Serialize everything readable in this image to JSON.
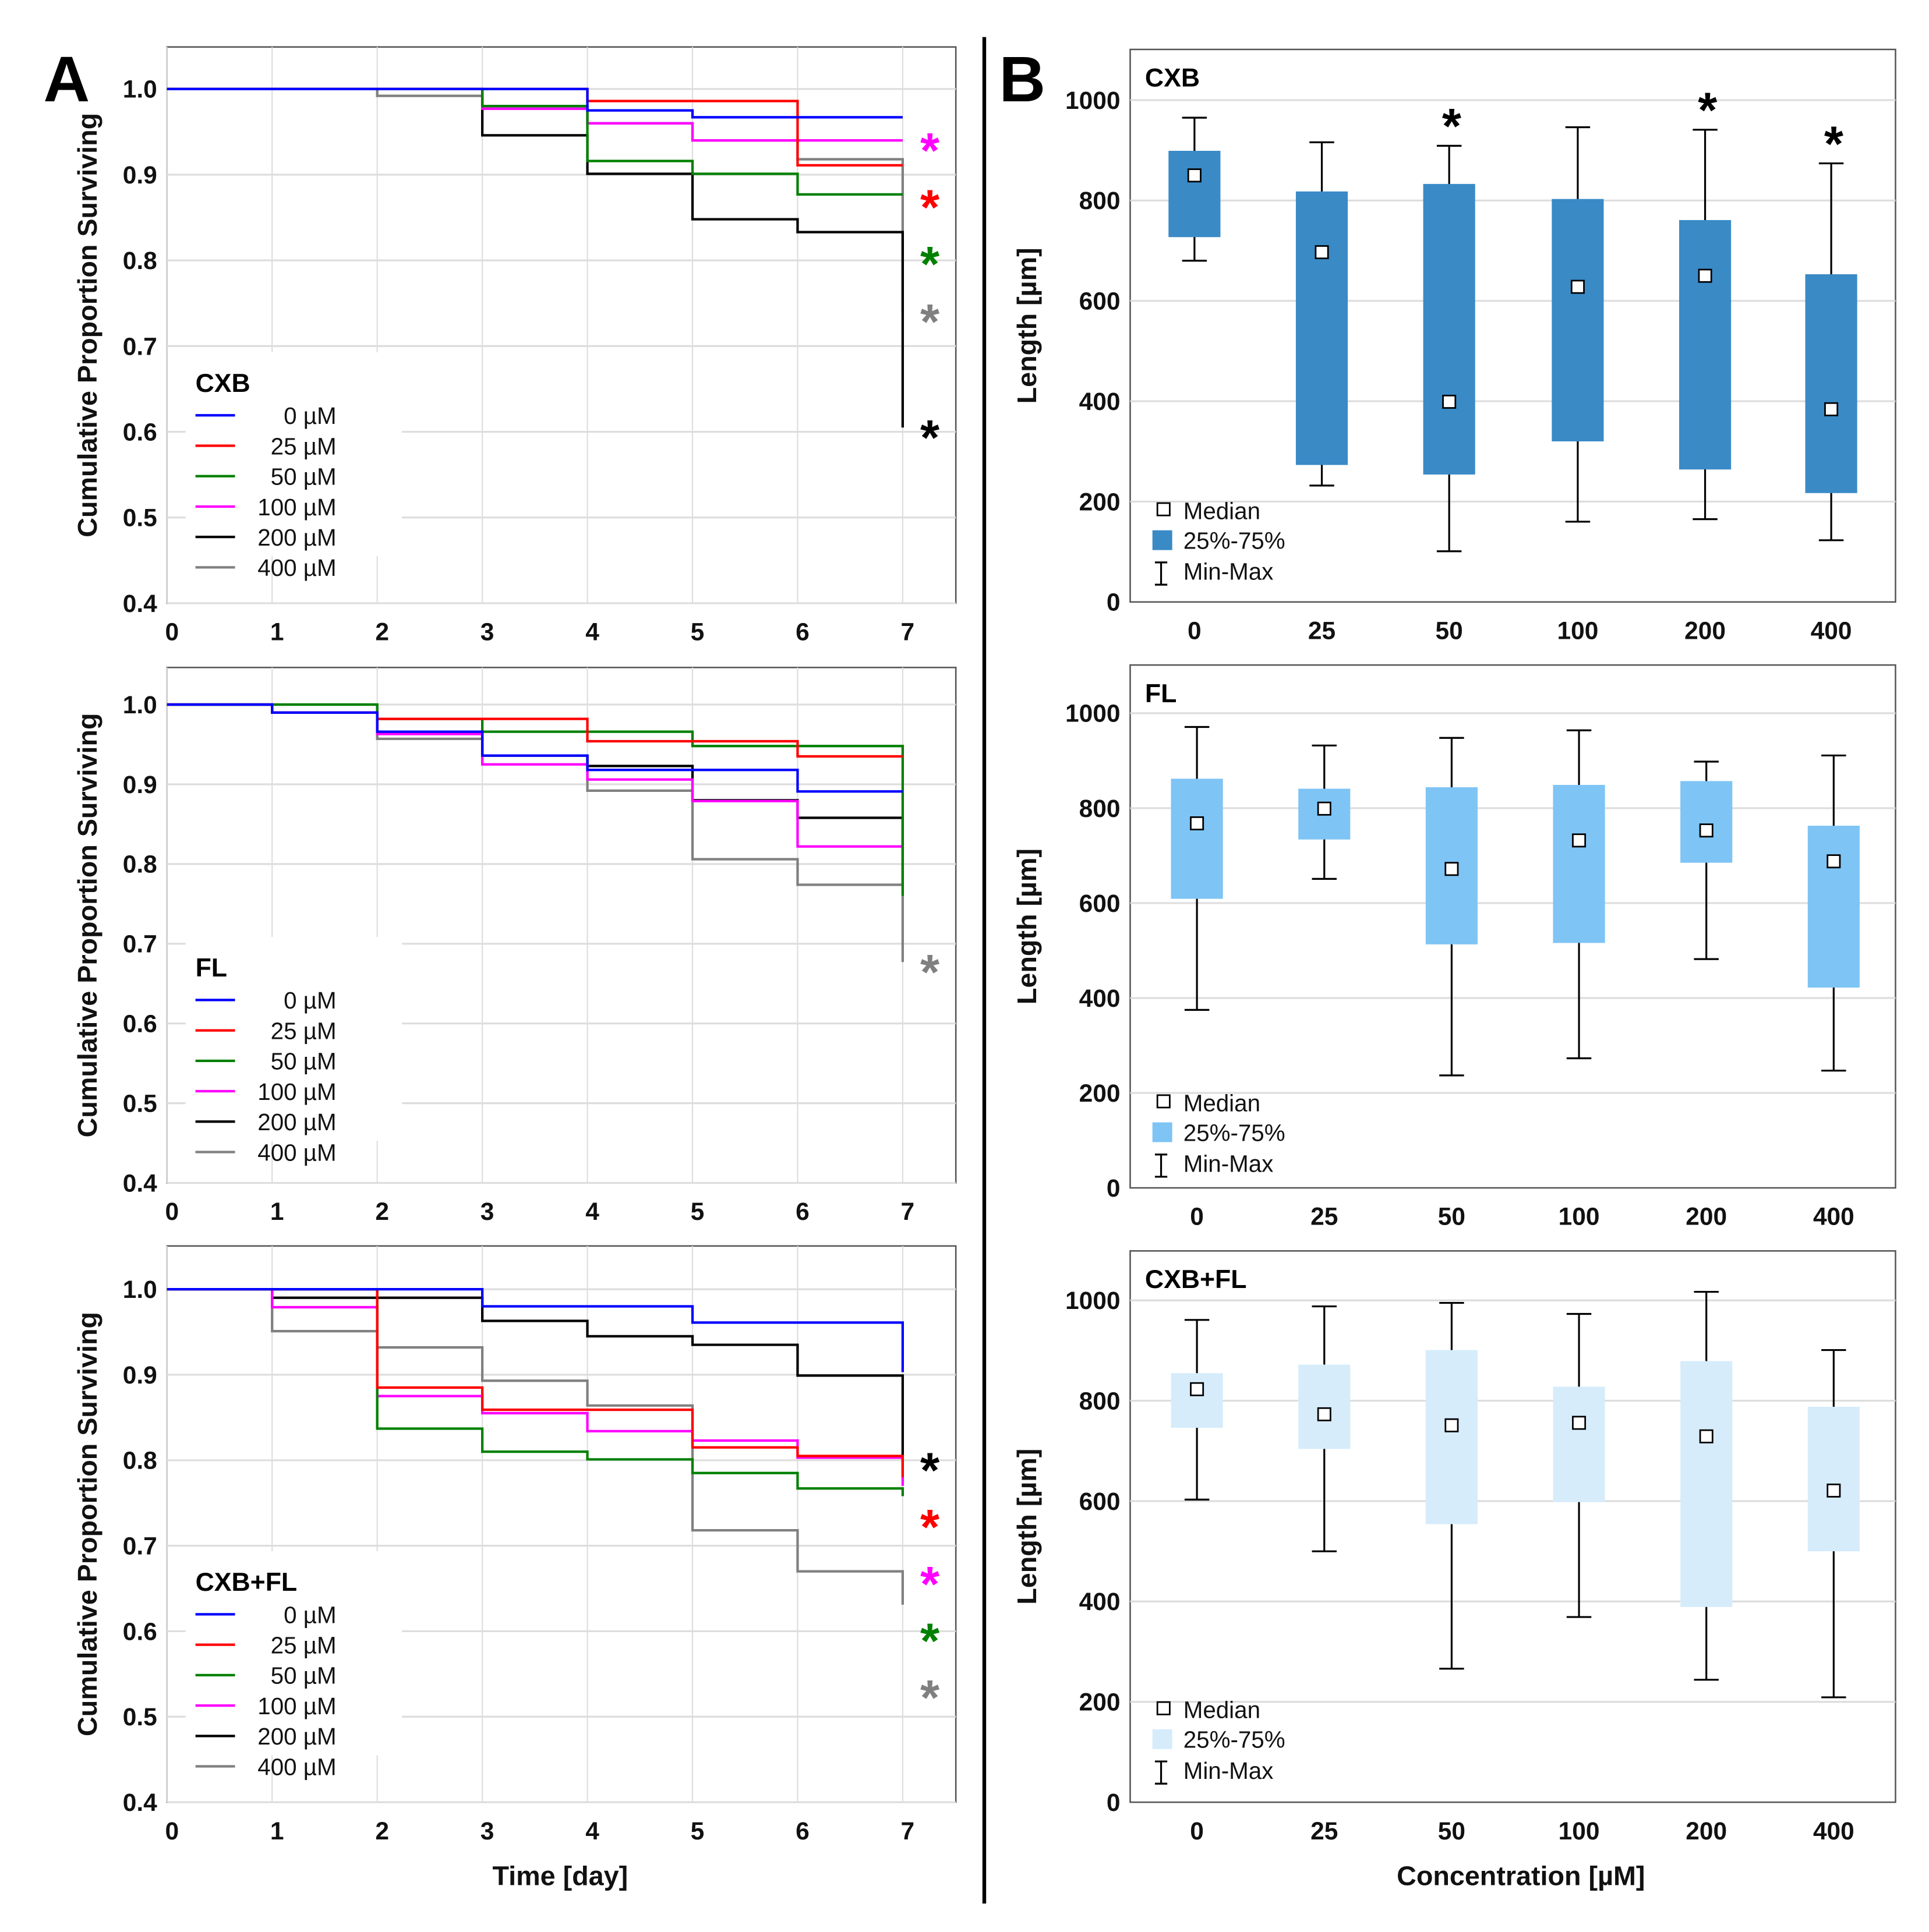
{
  "panel_labels": {
    "a": "A",
    "b": "B"
  },
  "chart_data": [
    {
      "type": "line",
      "subtype": "step-survival",
      "panel": "A",
      "title": "CXB",
      "xlabel": "",
      "ylabel": "Cumulative Proportion Surviving",
      "xlim": [
        0,
        7
      ],
      "ylim": [
        0.4,
        1.0
      ],
      "x_ticks": [
        "0",
        "1",
        "2",
        "3",
        "4",
        "5",
        "6",
        "7"
      ],
      "y_ticks": [
        "0.4",
        "0.5",
        "0.6",
        "0.7",
        "0.8",
        "0.9",
        "1.0"
      ],
      "grid": true,
      "legend_position": "bottom-left",
      "note": "steps = survival on intervals day0-1..day6-7; end = value after final drop at day 7",
      "series": [
        {
          "name": "0 µM",
          "color": "#0000ff",
          "steps": [
            1,
            1,
            1,
            1,
            0.975,
            0.967,
            0.967
          ],
          "end": 0.967,
          "significant": false
        },
        {
          "name": "25 µM",
          "color": "#ff0000",
          "steps": [
            1,
            1,
            1,
            1,
            0.986,
            0.986,
            0.911
          ],
          "end": 0.911,
          "significant": true
        },
        {
          "name": "50 µM",
          "color": "#008000",
          "steps": [
            1,
            1,
            1,
            0.98,
            0.916,
            0.901,
            0.877
          ],
          "end": 0.877,
          "significant": true
        },
        {
          "name": "100 µM",
          "color": "#ff00ff",
          "steps": [
            1,
            1,
            1,
            0.977,
            0.96,
            0.94,
            0.94
          ],
          "end": 0.94,
          "significant": true
        },
        {
          "name": "200 µM",
          "color": "#000000",
          "steps": [
            1,
            1,
            1,
            0.946,
            0.901,
            0.848,
            0.833
          ],
          "end": 0.605,
          "significant": true
        },
        {
          "name": "400 µM",
          "color": "#808080",
          "steps": [
            1,
            1,
            0.992,
            0.98,
            0.96,
            0.94,
            0.918
          ],
          "end": 0.74,
          "significant": true
        }
      ],
      "asterisk": "*"
    },
    {
      "type": "line",
      "subtype": "step-survival",
      "panel": "A",
      "title": "FL",
      "xlabel": "",
      "ylabel": "Cumulative Proportion Surviving",
      "xlim": [
        0,
        7
      ],
      "ylim": [
        0.4,
        1.0
      ],
      "x_ticks": [
        "0",
        "1",
        "2",
        "3",
        "4",
        "5",
        "6",
        "7"
      ],
      "y_ticks": [
        "0.4",
        "0.5",
        "0.6",
        "0.7",
        "0.8",
        "0.9",
        "1.0"
      ],
      "grid": true,
      "legend_position": "bottom-left",
      "series": [
        {
          "name": "0 µM",
          "color": "#0000ff",
          "steps": [
            1,
            0.99,
            0.966,
            0.936,
            0.918,
            0.918,
            0.891
          ],
          "end": 0.891,
          "significant": false
        },
        {
          "name": "25 µM",
          "color": "#ff0000",
          "steps": [
            1,
            0.99,
            0.982,
            0.982,
            0.954,
            0.954,
            0.935
          ],
          "end": 0.935,
          "significant": false
        },
        {
          "name": "50 µM",
          "color": "#008000",
          "steps": [
            1,
            1,
            0.982,
            0.966,
            0.966,
            0.948,
            0.948
          ],
          "end": 0.76,
          "significant": false
        },
        {
          "name": "100 µM",
          "color": "#ff00ff",
          "steps": [
            1,
            0.99,
            0.963,
            0.925,
            0.906,
            0.879,
            0.822
          ],
          "end": 0.822,
          "significant": false
        },
        {
          "name": "200 µM",
          "color": "#000000",
          "steps": [
            1,
            0.99,
            0.966,
            0.936,
            0.923,
            0.88,
            0.858
          ],
          "end": 0.775,
          "significant": false
        },
        {
          "name": "400 µM",
          "color": "#808080",
          "steps": [
            1,
            1,
            0.957,
            0.936,
            0.892,
            0.806,
            0.774
          ],
          "end": 0.677,
          "significant": true
        }
      ],
      "asterisk": "*"
    },
    {
      "type": "line",
      "subtype": "step-survival",
      "panel": "A",
      "title": "CXB+FL",
      "xlabel": "Time [day]",
      "ylabel": "Cumulative Proportion Surviving",
      "xlim": [
        0,
        7
      ],
      "ylim": [
        0.4,
        1.0
      ],
      "x_ticks": [
        "0",
        "1",
        "2",
        "3",
        "4",
        "5",
        "6",
        "7"
      ],
      "y_ticks": [
        "0.4",
        "0.5",
        "0.6",
        "0.7",
        "0.8",
        "0.9",
        "1.0"
      ],
      "grid": true,
      "legend_position": "bottom-left",
      "series": [
        {
          "name": "0 µM",
          "color": "#0000ff",
          "steps": [
            1,
            1,
            1,
            0.98,
            0.98,
            0.961,
            0.961
          ],
          "end": 0.903,
          "significant": false
        },
        {
          "name": "25 µM",
          "color": "#ff0000",
          "steps": [
            1,
            1,
            0.885,
            0.859,
            0.859,
            0.815,
            0.805
          ],
          "end": 0.78,
          "significant": true
        },
        {
          "name": "50 µM",
          "color": "#008000",
          "steps": [
            1,
            1,
            0.837,
            0.81,
            0.801,
            0.785,
            0.767
          ],
          "end": 0.758,
          "significant": true
        },
        {
          "name": "100 µM",
          "color": "#ff00ff",
          "steps": [
            1,
            0.979,
            0.875,
            0.855,
            0.834,
            0.823,
            0.803
          ],
          "end": 0.77,
          "significant": true
        },
        {
          "name": "200 µM",
          "color": "#000000",
          "steps": [
            1,
            0.99,
            0.99,
            0.963,
            0.945,
            0.935,
            0.899
          ],
          "end": 0.8,
          "significant": true
        },
        {
          "name": "400 µM",
          "color": "#808080",
          "steps": [
            1,
            0.951,
            0.932,
            0.893,
            0.864,
            0.718,
            0.67
          ],
          "end": 0.631,
          "significant": true
        }
      ],
      "asterisk": "*"
    },
    {
      "type": "box",
      "panel": "B",
      "title": "CXB",
      "xlabel": "",
      "ylabel": "Length [µm]",
      "ylim": [
        0,
        1100
      ],
      "y_ticks": [
        "0",
        "200",
        "400",
        "600",
        "800",
        "1000"
      ],
      "categories": [
        "0",
        "25",
        "50",
        "100",
        "200",
        "400"
      ],
      "box_color": "#3a8ac6",
      "grid": true,
      "legend_position": "bottom-left",
      "legend": [
        "Median",
        "25%-75%",
        "Min-Max"
      ],
      "median": [
        850,
        697,
        399,
        628,
        650,
        384
      ],
      "q1": [
        727,
        273,
        254,
        320,
        264,
        217
      ],
      "q3": [
        899,
        818,
        833,
        803,
        761,
        653
      ],
      "min": [
        680,
        232,
        101,
        160,
        165,
        123
      ],
      "max": [
        965,
        916,
        909,
        946,
        941,
        874
      ],
      "significant": [
        false,
        false,
        true,
        false,
        true,
        true
      ],
      "asterisk": "*"
    },
    {
      "type": "box",
      "panel": "B",
      "title": "FL",
      "xlabel": "",
      "ylabel": "Length [µm]",
      "ylim": [
        0,
        1100
      ],
      "y_ticks": [
        "0",
        "200",
        "400",
        "600",
        "800",
        "1000"
      ],
      "categories": [
        "0",
        "25",
        "50",
        "100",
        "200",
        "400"
      ],
      "box_color": "#7ec4f5",
      "grid": true,
      "legend_position": "bottom-left",
      "legend": [
        "Median",
        "25%-75%",
        "Min-Max"
      ],
      "median": [
        768,
        799,
        672,
        732,
        753,
        688
      ],
      "q1": [
        609,
        734,
        513,
        516,
        685,
        422
      ],
      "q3": [
        862,
        841,
        844,
        849,
        857,
        763
      ],
      "min": [
        375,
        651,
        237,
        273,
        482,
        247
      ],
      "max": [
        971,
        932,
        948,
        964,
        898,
        911
      ],
      "significant": [
        false,
        false,
        false,
        false,
        false,
        false
      ],
      "asterisk": "*"
    },
    {
      "type": "box",
      "panel": "B",
      "title": "CXB+FL",
      "xlabel": "Concentration [µM]",
      "ylabel": "Length [µm]",
      "ylim": [
        0,
        1100
      ],
      "y_ticks": [
        "0",
        "200",
        "400",
        "600",
        "800",
        "1000"
      ],
      "categories": [
        "0",
        "25",
        "50",
        "100",
        "200",
        "400"
      ],
      "box_color": "#d6ecfb",
      "grid": true,
      "legend_position": "bottom-left",
      "legend": [
        "Median",
        "25%-75%",
        "Min-Max"
      ],
      "median": [
        823,
        773,
        751,
        756,
        729,
        621
      ],
      "q1": [
        746,
        704,
        554,
        598,
        389,
        500
      ],
      "q3": [
        855,
        872,
        901,
        828,
        879,
        788
      ],
      "min": [
        603,
        500,
        266,
        369,
        244,
        209
      ],
      "max": [
        961,
        988,
        995,
        973,
        1017,
        901
      ],
      "significant": [
        false,
        false,
        false,
        false,
        false,
        false
      ],
      "asterisk": "*"
    }
  ]
}
